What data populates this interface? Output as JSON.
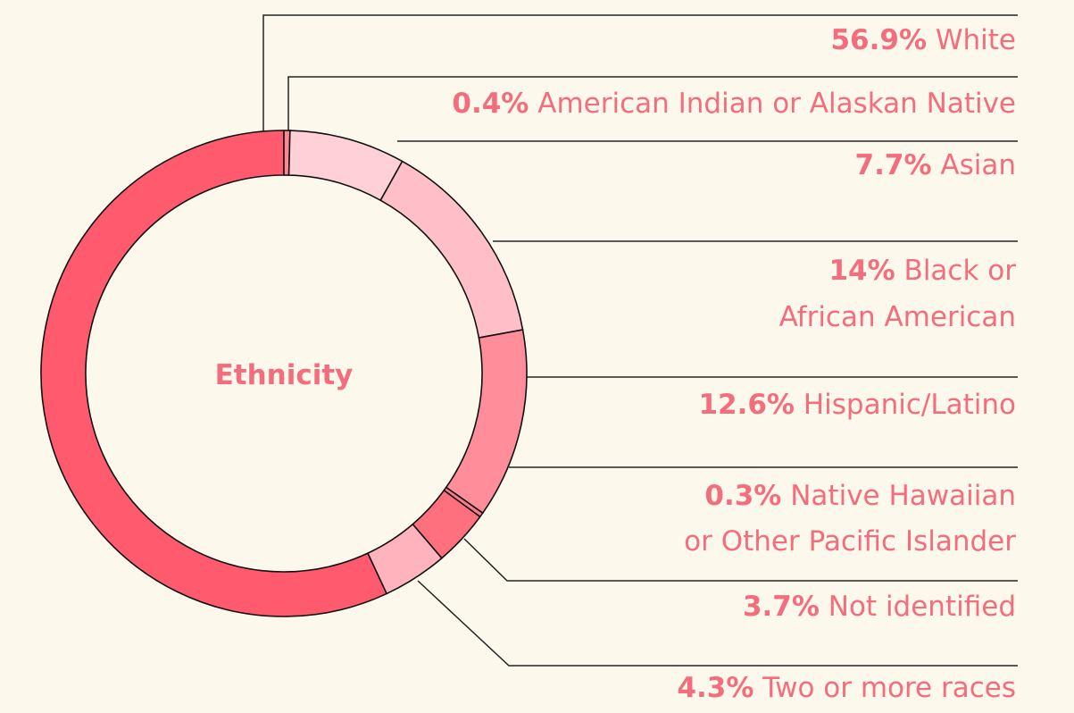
{
  "chart_data": {
    "type": "donut",
    "center_label": "Ethnicity",
    "categories": [
      [
        "White"
      ],
      [
        "American Indian or Alaskan Native"
      ],
      [
        "Asian"
      ],
      [
        "Black or",
        "African American"
      ],
      [
        "Hispanic/Latino"
      ],
      [
        "Native Hawaiian",
        "or Other Pacific Islander"
      ],
      [
        "Not identified"
      ],
      [
        "Two or more races"
      ]
    ],
    "values": [
      56.9,
      0.4,
      7.7,
      14,
      12.6,
      0.3,
      3.7,
      4.3
    ],
    "value_labels": [
      "56.9%",
      "0.4%",
      "7.7%",
      "14%",
      "12.6%",
      "0.3%",
      "3.7%",
      "4.3%"
    ],
    "colors": [
      "#ff5a6e",
      "#ff8592",
      "#ffd0d6",
      "#ffbfc8",
      "#ff8e9a",
      "#ff7a88",
      "#ff707f",
      "#ffb3bd"
    ]
  }
}
